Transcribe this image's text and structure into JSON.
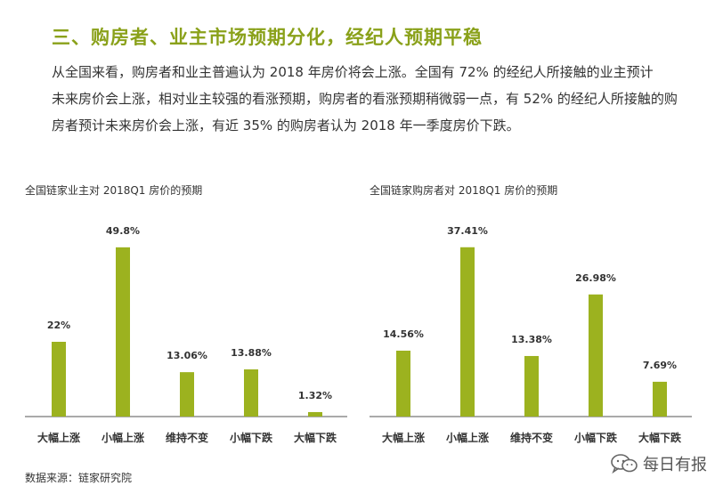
{
  "section_heading": "三、购房者、业主市场预期分化，经纪人预期平稳",
  "paragraph_lines": [
    "从全国来看，购房者和业主普遍认为 2018 年房价将会上涨。全国有 72% 的经纪人所接触的业主预计",
    "未来房价会上涨，相对业主较强的看涨预期，购房者的看涨预期稍微弱一点，有 52% 的经纪人所接触的购",
    "房者预计未来房价会上涨，有近 35% 的购房者认为 2018 年一季度房价下跌。"
  ],
  "bar_color": "#9cb21f",
  "chart_data": [
    {
      "type": "bar",
      "title": "全国链家业主对 2018Q1 房价的预期",
      "categories": [
        "大幅上涨",
        "小幅上涨",
        "维持不变",
        "小幅下跌",
        "大幅下跌"
      ],
      "values": [
        22,
        49.8,
        13.06,
        13.88,
        1.32
      ],
      "value_labels": [
        "22%",
        "49.8%",
        "13.06%",
        "13.88%",
        "1.32%"
      ],
      "ylim": [
        0,
        55
      ]
    },
    {
      "type": "bar",
      "title": "全国链家购房者对 2018Q1 房价的预期",
      "categories": [
        "大幅上涨",
        "小幅上涨",
        "维持不变",
        "小幅下跌",
        "大幅下跌"
      ],
      "values": [
        14.56,
        37.41,
        13.38,
        26.98,
        7.69
      ],
      "value_labels": [
        "14.56%",
        "37.41%",
        "13.38%",
        "26.98%",
        "7.69%"
      ],
      "ylim": [
        0,
        41.3
      ]
    }
  ],
  "source_note": "数据来源：链家研究院",
  "watermark_text": "每日有报",
  "watermark_icon": "wechat-icon"
}
